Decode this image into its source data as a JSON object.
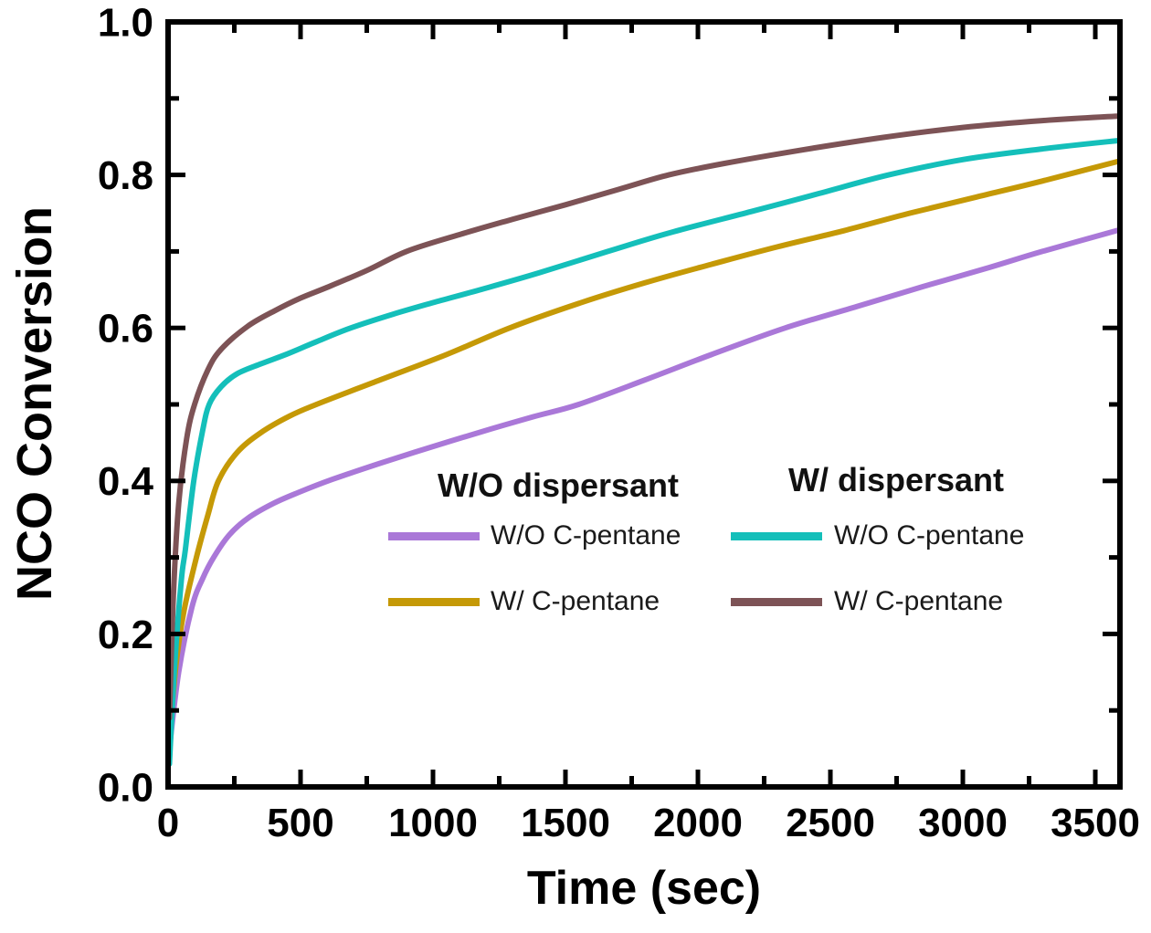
{
  "chart_data": {
    "type": "line",
    "title": "",
    "xlabel": "Time (sec)",
    "ylabel": "NCO Conversion",
    "xlim": [
      0,
      3593
    ],
    "ylim": [
      0.0,
      1.0
    ],
    "xticks": [
      0,
      500,
      1000,
      1500,
      2000,
      2500,
      3000,
      3500
    ],
    "xtick_labels": [
      "0",
      "500",
      "1000",
      "1500",
      "2000",
      "2500",
      "3000",
      "3500"
    ],
    "xticks_minor": [
      250,
      750,
      1250,
      1750,
      2250,
      2750,
      3250
    ],
    "yticks": [
      0.0,
      0.2,
      0.4,
      0.6,
      0.8,
      1.0
    ],
    "ytick_labels": [
      "0.0",
      "0.2",
      "0.4",
      "0.6",
      "0.8",
      "1.0"
    ],
    "yticks_minor": [
      0.1,
      0.3,
      0.5,
      0.7,
      0.9
    ],
    "grid": false,
    "frame": true,
    "tick_direction": "in",
    "axis_color": "#000000",
    "legend": {
      "position": "inside-lower-right",
      "groups": [
        {
          "header": "W/O dispersant",
          "entries": [
            {
              "label": "W/O C-pentane",
              "series": "wo_disp_wo_cp"
            },
            {
              "label": "W/ C-pentane",
              "series": "wo_disp_w_cp"
            }
          ]
        },
        {
          "header": "W/ dispersant",
          "entries": [
            {
              "label": "W/O C-pentane",
              "series": "w_disp_wo_cp"
            },
            {
              "label": "W/ C-pentane",
              "series": "w_disp_w_cp"
            }
          ]
        }
      ]
    },
    "series": [
      {
        "key": "wo_disp_wo_cp",
        "name": "W/O dispersant - W/O C-pentane",
        "color": "#aa78d8",
        "points": [
          [
            5,
            0.05
          ],
          [
            40,
            0.15
          ],
          [
            90,
            0.235
          ],
          [
            130,
            0.272
          ],
          [
            172,
            0.3
          ],
          [
            230,
            0.329
          ],
          [
            300,
            0.351
          ],
          [
            400,
            0.371
          ],
          [
            500,
            0.386
          ],
          [
            620,
            0.402
          ],
          [
            800,
            0.423
          ],
          [
            1000,
            0.445
          ],
          [
            1200,
            0.466
          ],
          [
            1380,
            0.484
          ],
          [
            1550,
            0.5
          ],
          [
            1800,
            0.532
          ],
          [
            2050,
            0.565
          ],
          [
            2330,
            0.6
          ],
          [
            2600,
            0.628
          ],
          [
            2850,
            0.654
          ],
          [
            3100,
            0.679
          ],
          [
            3300,
            0.7
          ],
          [
            3590,
            0.728
          ]
        ]
      },
      {
        "key": "wo_disp_w_cp",
        "name": "W/O dispersant - W/ C-pentane",
        "color": "#c59906",
        "points": [
          [
            5,
            0.06
          ],
          [
            30,
            0.16
          ],
          [
            60,
            0.23
          ],
          [
            107,
            0.3
          ],
          [
            150,
            0.355
          ],
          [
            190,
            0.4
          ],
          [
            260,
            0.437
          ],
          [
            350,
            0.463
          ],
          [
            460,
            0.485
          ],
          [
            560,
            0.5
          ],
          [
            800,
            0.532
          ],
          [
            1050,
            0.565
          ],
          [
            1290,
            0.6
          ],
          [
            1550,
            0.632
          ],
          [
            1800,
            0.659
          ],
          [
            2050,
            0.683
          ],
          [
            2300,
            0.706
          ],
          [
            2550,
            0.727
          ],
          [
            2800,
            0.75
          ],
          [
            3050,
            0.771
          ],
          [
            3300,
            0.792
          ],
          [
            3590,
            0.818
          ]
        ]
      },
      {
        "key": "w_disp_wo_cp",
        "name": "W/ dispersant - W/O C-pentane",
        "color": "#14bfba",
        "points": [
          [
            5,
            0.03
          ],
          [
            25,
            0.16
          ],
          [
            50,
            0.27
          ],
          [
            65,
            0.31
          ],
          [
            97,
            0.4
          ],
          [
            130,
            0.465
          ],
          [
            155,
            0.5
          ],
          [
            200,
            0.523
          ],
          [
            260,
            0.54
          ],
          [
            350,
            0.553
          ],
          [
            450,
            0.566
          ],
          [
            560,
            0.582
          ],
          [
            690,
            0.6
          ],
          [
            850,
            0.618
          ],
          [
            1000,
            0.633
          ],
          [
            1200,
            0.652
          ],
          [
            1400,
            0.672
          ],
          [
            1660,
            0.7
          ],
          [
            1900,
            0.725
          ],
          [
            2200,
            0.752
          ],
          [
            2450,
            0.775
          ],
          [
            2720,
            0.8
          ],
          [
            3000,
            0.82
          ],
          [
            3300,
            0.834
          ],
          [
            3590,
            0.845
          ]
        ]
      },
      {
        "key": "w_disp_w_cp",
        "name": "W/ dispersant - W/ C-pentane",
        "color": "#7d5356",
        "points": [
          [
            5,
            0.09
          ],
          [
            20,
            0.25
          ],
          [
            40,
            0.37
          ],
          [
            70,
            0.455
          ],
          [
            100,
            0.5
          ],
          [
            150,
            0.545
          ],
          [
            200,
            0.572
          ],
          [
            300,
            0.602
          ],
          [
            400,
            0.622
          ],
          [
            500,
            0.639
          ],
          [
            600,
            0.653
          ],
          [
            750,
            0.675
          ],
          [
            900,
            0.7
          ],
          [
            1100,
            0.722
          ],
          [
            1300,
            0.742
          ],
          [
            1500,
            0.761
          ],
          [
            1700,
            0.781
          ],
          [
            1890,
            0.8
          ],
          [
            2100,
            0.815
          ],
          [
            2400,
            0.833
          ],
          [
            2700,
            0.849
          ],
          [
            3000,
            0.862
          ],
          [
            3300,
            0.871
          ],
          [
            3590,
            0.877
          ]
        ]
      }
    ]
  }
}
